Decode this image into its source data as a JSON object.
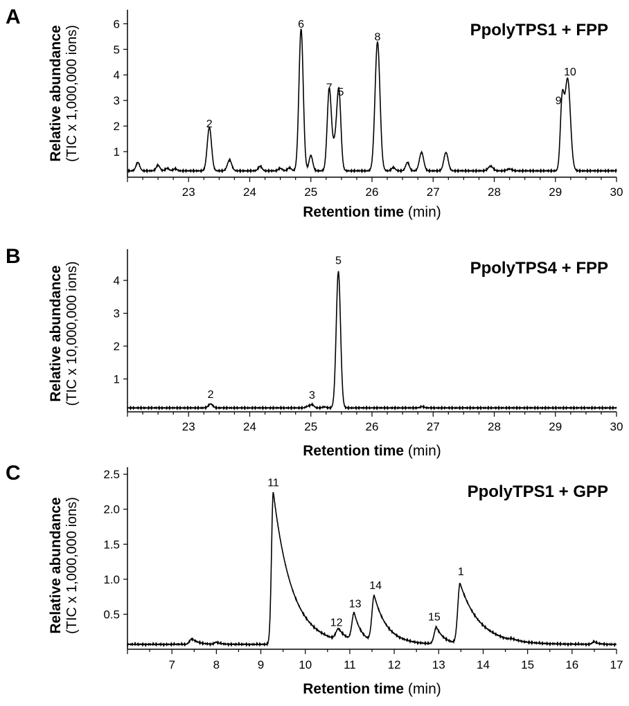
{
  "chart_data": [
    {
      "type": "line",
      "panel": "A",
      "title": "PpolyTPS1 + FPP",
      "ylabel": "Relative abundance",
      "ylabel_sub": "(TIC x 1,000,000 ions)",
      "xlabel": "Retention time",
      "xlabel_unit": "(min)",
      "xlim": [
        22,
        30
      ],
      "ylim": [
        0,
        6.55
      ],
      "xticks": [
        23,
        24,
        25,
        26,
        27,
        28,
        29,
        30
      ],
      "yticks": [
        1,
        2,
        3,
        4,
        5,
        6
      ],
      "baseline": 0.25,
      "peaks": [
        {
          "x": 22.17,
          "h": 0.33,
          "w": 0.03
        },
        {
          "x": 22.5,
          "h": 0.22,
          "w": 0.03
        },
        {
          "x": 22.65,
          "h": 0.1,
          "w": 0.03
        },
        {
          "x": 22.78,
          "h": 0.08,
          "w": 0.03
        },
        {
          "x": 23.34,
          "h": 1.7,
          "w": 0.035
        },
        {
          "x": 23.67,
          "h": 0.42,
          "w": 0.035
        },
        {
          "x": 24.17,
          "h": 0.18,
          "w": 0.03
        },
        {
          "x": 24.5,
          "h": 0.1,
          "w": 0.03
        },
        {
          "x": 24.65,
          "h": 0.12,
          "w": 0.03
        },
        {
          "x": 24.84,
          "h": 5.55,
          "w": 0.035
        },
        {
          "x": 25.0,
          "h": 0.6,
          "w": 0.03
        },
        {
          "x": 25.3,
          "h": 3.08,
          "w": 0.033
        },
        {
          "x": 25.4,
          "h": 1.1,
          "w": 0.05
        },
        {
          "x": 25.46,
          "h": 2.68,
          "w": 0.032
        },
        {
          "x": 26.09,
          "h": 5.05,
          "w": 0.04
        },
        {
          "x": 26.35,
          "h": 0.13,
          "w": 0.03
        },
        {
          "x": 26.58,
          "h": 0.33,
          "w": 0.03
        },
        {
          "x": 26.81,
          "h": 0.72,
          "w": 0.035
        },
        {
          "x": 27.21,
          "h": 0.72,
          "w": 0.035
        },
        {
          "x": 27.94,
          "h": 0.18,
          "w": 0.04
        },
        {
          "x": 28.25,
          "h": 0.07,
          "w": 0.04
        },
        {
          "x": 29.11,
          "h": 2.58,
          "w": 0.03
        },
        {
          "x": 29.2,
          "h": 3.6,
          "w": 0.045
        }
      ],
      "annotations": [
        {
          "label": "2",
          "x": 23.34,
          "y": 1.95
        },
        {
          "label": "6",
          "x": 24.84,
          "y": 5.85
        },
        {
          "label": "7",
          "x": 25.3,
          "y": 3.37
        },
        {
          "label": "5",
          "x": 25.49,
          "y": 3.2
        },
        {
          "label": "8",
          "x": 26.09,
          "y": 5.35
        },
        {
          "label": "9",
          "x": 29.05,
          "y": 2.85
        },
        {
          "label": "10",
          "x": 29.24,
          "y": 3.98
        }
      ]
    },
    {
      "type": "line",
      "panel": "B",
      "title": "PpolyTPS4 + FPP",
      "ylabel": "Relative abundance",
      "ylabel_sub": "(TIC x 10,000,000 ions)",
      "xlabel": "Retention time",
      "xlabel_unit": "(min)",
      "xlim": [
        22,
        30
      ],
      "ylim": [
        0,
        4.95
      ],
      "xticks": [
        23,
        24,
        25,
        26,
        27,
        28,
        29,
        30
      ],
      "yticks": [
        1,
        2,
        3,
        4
      ],
      "baseline": 0.12,
      "peaks": [
        {
          "x": 23.36,
          "h": 0.12,
          "w": 0.035
        },
        {
          "x": 24.95,
          "h": 0.05,
          "w": 0.03
        },
        {
          "x": 25.02,
          "h": 0.1,
          "w": 0.03
        },
        {
          "x": 25.22,
          "h": 0.03,
          "w": 0.03
        },
        {
          "x": 25.45,
          "h": 4.15,
          "w": 0.035
        },
        {
          "x": 26.82,
          "h": 0.04,
          "w": 0.03
        }
      ],
      "annotations": [
        {
          "label": "2",
          "x": 23.36,
          "y": 0.42
        },
        {
          "label": "3",
          "x": 25.02,
          "y": 0.4
        },
        {
          "label": "5",
          "x": 25.45,
          "y": 4.5
        }
      ]
    },
    {
      "type": "line",
      "panel": "C",
      "title": "PpolyTPS1 + GPP",
      "ylabel": "Relative abundance",
      "ylabel_sub": "(TIC x 1,000,000 ions)",
      "xlabel": "Retention time",
      "xlabel_unit": "(min)",
      "xlim": [
        6,
        17
      ],
      "ylim": [
        0,
        2.6
      ],
      "xticks": [
        7,
        8,
        9,
        10,
        11,
        12,
        13,
        14,
        15,
        16,
        17
      ],
      "yticks": [
        0.5,
        1.0,
        1.5,
        2.0,
        2.5
      ],
      "ytick_labels": [
        "0.5",
        "1.0",
        "1.5",
        "2.0",
        "2.5"
      ],
      "baseline": 0.07,
      "tailed_peaks": [
        {
          "x": 7.45,
          "h": 0.08,
          "rise": 0.05,
          "tau": 0.15
        },
        {
          "x": 8.0,
          "h": 0.03,
          "rise": 0.04,
          "tau": 0.1
        },
        {
          "x": 9.28,
          "h": 2.18,
          "rise": 0.04,
          "tau": 0.42
        },
        {
          "x": 10.75,
          "h": 0.16,
          "rise": 0.06,
          "tau": 0.2
        },
        {
          "x": 11.1,
          "h": 0.4,
          "rise": 0.05,
          "tau": 0.17
        },
        {
          "x": 11.55,
          "h": 0.66,
          "rise": 0.05,
          "tau": 0.3
        },
        {
          "x": 12.95,
          "h": 0.24,
          "rise": 0.05,
          "tau": 0.18
        },
        {
          "x": 13.48,
          "h": 0.86,
          "rise": 0.05,
          "tau": 0.45
        },
        {
          "x": 14.65,
          "h": 0.02,
          "rise": 0.05,
          "tau": 0.15
        },
        {
          "x": 16.5,
          "h": 0.04,
          "rise": 0.04,
          "tau": 0.08
        }
      ],
      "annotations": [
        {
          "label": "11",
          "x": 9.28,
          "y": 2.33
        },
        {
          "label": "12",
          "x": 10.7,
          "y": 0.33
        },
        {
          "label": "13",
          "x": 11.12,
          "y": 0.6
        },
        {
          "label": "14",
          "x": 11.58,
          "y": 0.86
        },
        {
          "label": "15",
          "x": 12.9,
          "y": 0.41
        },
        {
          "label": "1",
          "x": 13.5,
          "y": 1.06
        }
      ]
    }
  ]
}
